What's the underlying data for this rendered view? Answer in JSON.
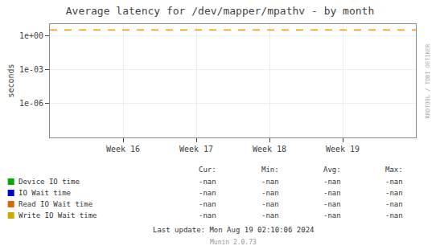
{
  "chart_data": {
    "type": "line",
    "title": "Average latency for /dev/mapper/mpathv - by month",
    "y_label": "seconds",
    "categories": [
      "Week 16",
      "Week 17",
      "Week 18",
      "Week 19"
    ],
    "series": [
      {
        "name": "Device IO time",
        "color": "#00aa00",
        "values": [
          null,
          null,
          null,
          null
        ],
        "stats": [
          "-nan",
          "-nan",
          "-nan",
          "-nan"
        ]
      },
      {
        "name": "IO Wait time",
        "color": "#0000cc",
        "values": [
          null,
          null,
          null,
          null
        ],
        "stats": [
          "-nan",
          "-nan",
          "-nan",
          "-nan"
        ]
      },
      {
        "name": "Read IO Wait time",
        "color": "#dd6600",
        "values": [
          null,
          null,
          null,
          null
        ],
        "stats": [
          "-nan",
          "-nan",
          "-nan",
          "-nan"
        ]
      },
      {
        "name": "Write IO Wait time",
        "color": "#ccaa00",
        "values": [
          null,
          null,
          null,
          null
        ],
        "stats": [
          "-nan",
          "-nan",
          "-nan",
          "-nan"
        ]
      }
    ],
    "stats_headers": [
      "Cur:",
      "Min:",
      "Avg:",
      "Max:"
    ],
    "log": "y",
    "ylim": [
      1e-09,
      10
    ],
    "yticks": [
      {
        "value": 1,
        "label": "1e+00"
      },
      {
        "value": 0.001,
        "label": "1e-03"
      },
      {
        "value": 1e-06,
        "label": "1e-06"
      }
    ],
    "grid": true,
    "reference_line": {
      "value": 3,
      "color": "#ff9900",
      "line_style": "dashed"
    },
    "last_update": "Last update: Mon Aug 19 02:10:06 2024",
    "footer": "Munin 2.0.73",
    "watermark": "RRDTOOL / TOBI OETIKER"
  }
}
